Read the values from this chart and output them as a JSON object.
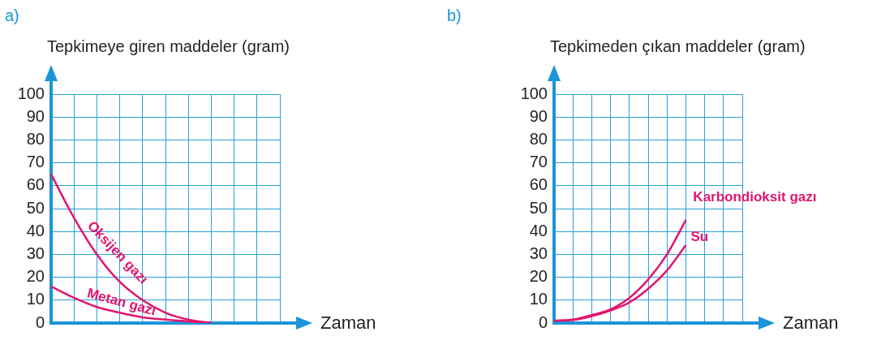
{
  "chart_data": [
    {
      "type": "line",
      "title": "a)",
      "ylabel": "Tepkimeye giren maddeler (gram)",
      "xlabel": "Zaman",
      "categories": [
        null,
        null,
        null,
        null,
        null,
        null,
        null,
        null,
        null,
        null,
        null
      ],
      "series": [
        {
          "name": "Oksijen gazı",
          "color": "#e2156f",
          "values": [
            65,
            46,
            30,
            18,
            10,
            4.5,
            1.5,
            0,
            null,
            null,
            null
          ]
        },
        {
          "name": "Metan gazı",
          "color": "#e2156f",
          "values": [
            16,
            11,
            7,
            4.5,
            2.5,
            1.5,
            0.7,
            0,
            null,
            null,
            null
          ]
        }
      ],
      "ylim": [
        0,
        100
      ],
      "yticks": [
        0,
        10,
        20,
        30,
        40,
        50,
        60,
        70,
        80,
        90,
        100
      ],
      "grid": true,
      "legend": false,
      "marker": "none",
      "line_style": "solid"
    },
    {
      "type": "line",
      "title": "b)",
      "ylabel": "Tepkimeden çıkan maddeler (gram)",
      "xlabel": "Zaman",
      "categories": [
        null,
        null,
        null,
        null,
        null,
        null,
        null,
        null,
        null,
        null,
        null
      ],
      "series": [
        {
          "name": "Karbondioksit gazı",
          "color": "#e2156f",
          "values": [
            1,
            1.5,
            3.5,
            6,
            11,
            19,
            30,
            45,
            null,
            null,
            null
          ]
        },
        {
          "name": "Su",
          "color": "#e2156f",
          "values": [
            1,
            1.3,
            3,
            5.5,
            9,
            15,
            23,
            34,
            null,
            null,
            null
          ]
        }
      ],
      "ylim": [
        0,
        100
      ],
      "yticks": [
        0,
        10,
        20,
        30,
        40,
        50,
        60,
        70,
        80,
        90,
        100
      ],
      "grid": true,
      "legend": false,
      "marker": "none",
      "line_style": "solid"
    }
  ]
}
